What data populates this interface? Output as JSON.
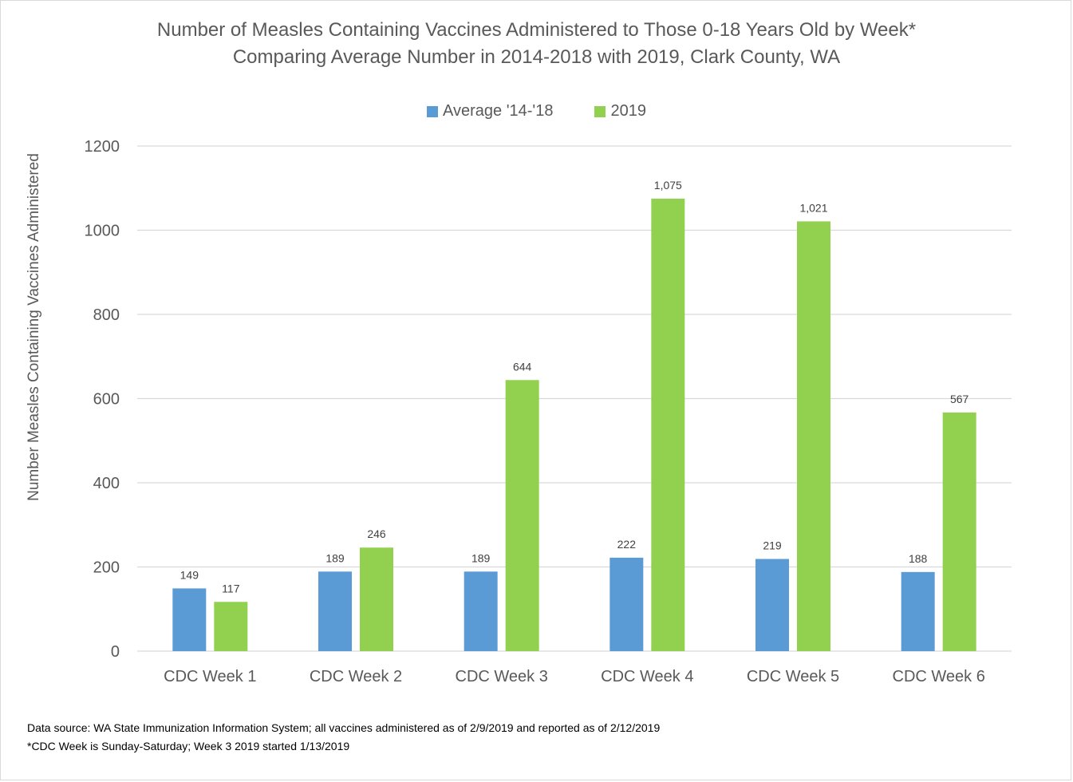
{
  "chart_data": {
    "type": "bar",
    "title": "Number of Measles Containing Vaccines Administered to Those 0-18 Years Old by Week*",
    "subtitle": "Comparing Average Number in 2014-2018 with 2019, Clark County, WA",
    "ylabel": "Number Measles Containing Vaccines Administered",
    "xlabel": "",
    "ylim": [
      0,
      1200
    ],
    "yticks": [
      0,
      200,
      400,
      600,
      800,
      1000,
      1200
    ],
    "grid": true,
    "legend_position": "top-center",
    "categories": [
      "CDC Week 1",
      "CDC Week 2",
      "CDC Week 3",
      "CDC Week 4",
      "CDC Week 5",
      "CDC Week 6"
    ],
    "series": [
      {
        "name": "Average '14-'18",
        "color": "#5b9bd5",
        "values": [
          149,
          189,
          189,
          222,
          219,
          188
        ],
        "labels": [
          "149",
          "189",
          "189",
          "222",
          "219",
          "188"
        ]
      },
      {
        "name": "2019",
        "color": "#92d050",
        "values": [
          117,
          246,
          644,
          1075,
          1021,
          567
        ],
        "labels": [
          "117",
          "246",
          "644",
          "1,075",
          "1,021",
          "567"
        ]
      }
    ]
  },
  "footnotes": {
    "source": "Data source: WA State Immunization Information System; all vaccines administered as of 2/9/2019 and reported as of 2/12/2019",
    "week_note": "*CDC Week is Sunday-Saturday; Week 3 2019 started 1/13/2019"
  }
}
